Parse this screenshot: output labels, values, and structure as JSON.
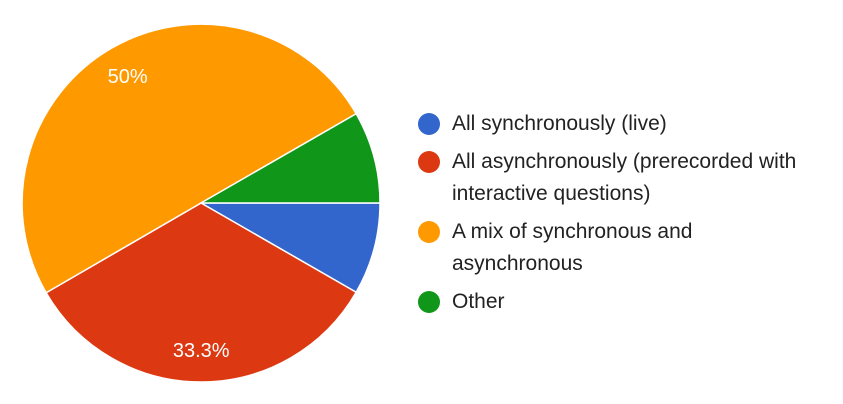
{
  "chart_data": {
    "type": "pie",
    "categories": [
      "All synchronously (live)",
      "All asynchronously (prerecorded with interactive questions)",
      "A mix of synchronous and asynchronous",
      "Other"
    ],
    "values": [
      8.3,
      33.3,
      50,
      8.3
    ],
    "data_labels": [
      "",
      "33.3%",
      "50%",
      ""
    ],
    "colors": [
      "#3366cc",
      "#dc3912",
      "#ff9900",
      "#109618"
    ],
    "legend_position": "right",
    "start_angle_deg": 0,
    "direction": "clockwise"
  },
  "legend": {
    "items": [
      {
        "label": "All synchronously (live)",
        "color": "#3366cc"
      },
      {
        "label": "All asynchronously (prerecorded with interactive questions)",
        "color": "#dc3912"
      },
      {
        "label": "A mix of synchronous and asynchronous",
        "color": "#ff9900"
      },
      {
        "label": "Other",
        "color": "#109618"
      }
    ]
  }
}
